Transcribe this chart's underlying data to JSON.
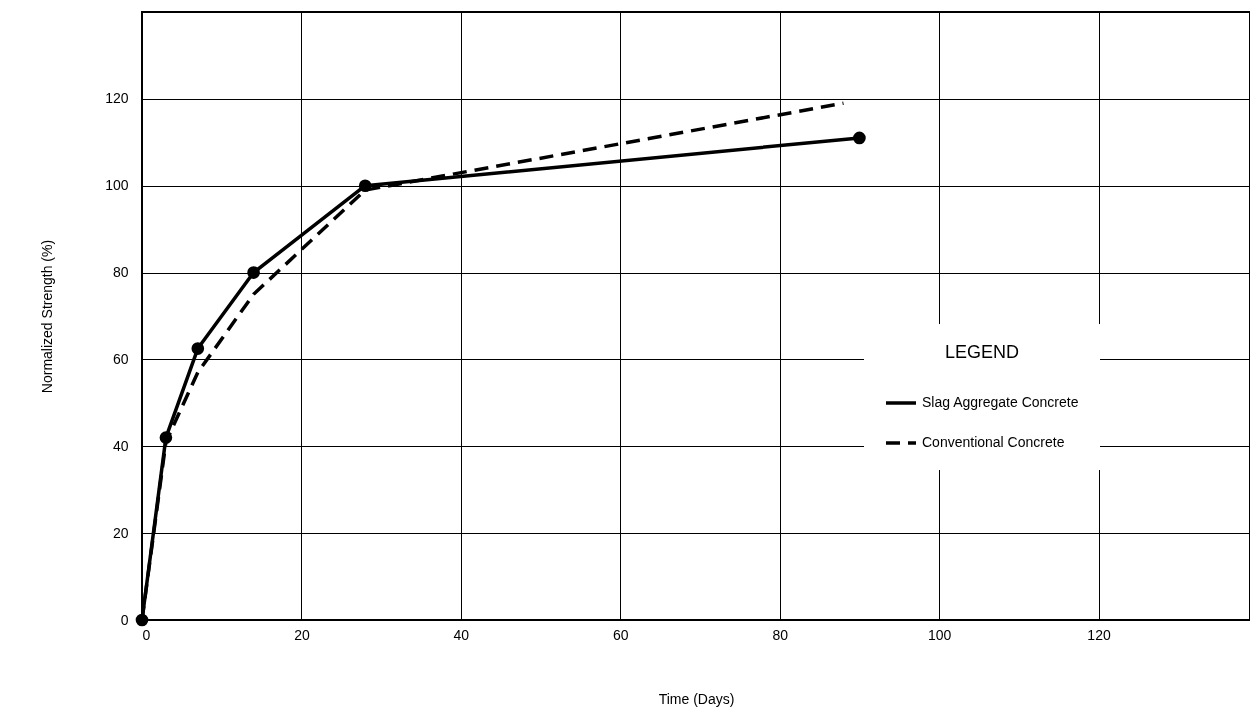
{
  "chart_data": {
    "type": "line",
    "xlabel": "Time (Days)",
    "ylabel": "Normalized Strength (%)",
    "legend_title": "LEGEND",
    "xlim": [
      0,
      139
    ],
    "ylim": [
      0,
      140
    ],
    "xticks": [
      0,
      20,
      40,
      60,
      80,
      100,
      120
    ],
    "yticks": [
      0,
      20,
      40,
      60,
      80,
      100,
      120
    ],
    "grid": true,
    "legend": "bottom right",
    "series": [
      {
        "name": "Slag Aggregate Concrete",
        "color": "#000000",
        "marker": "circle",
        "line_style": "solid",
        "x": [
          0,
          3,
          7,
          14,
          28,
          90
        ],
        "values": [
          0,
          42,
          62.5,
          80,
          100,
          111
        ]
      },
      {
        "name": "Conventional Concrete",
        "color": "#000000",
        "marker": "none",
        "line_style": "dashed",
        "x": [
          0,
          3,
          7,
          14,
          28,
          88
        ],
        "values": [
          0,
          41,
          57,
          75,
          99,
          119
        ]
      }
    ]
  }
}
